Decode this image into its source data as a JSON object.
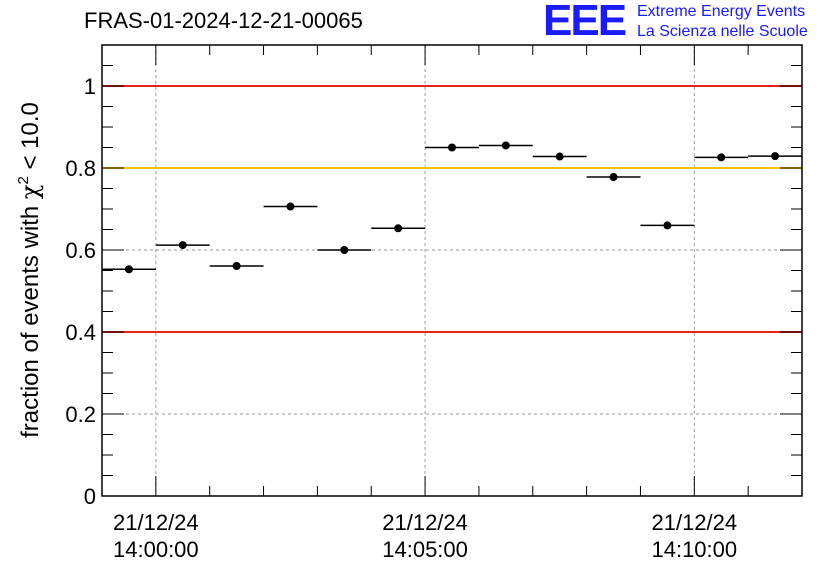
{
  "title": "FRAS-01-2024-12-21-00065",
  "logo": {
    "mark": "EEE",
    "line1": "Extreme Energy Events",
    "line2": "La Scienza nelle Scuole",
    "color": "#1a1aff"
  },
  "chart_data": {
    "type": "scatter",
    "ylabel": "fraction of events with χ² < 10.0",
    "ylabel_prefix": "fraction of events with ",
    "ylabel_symbol": "χ",
    "ylabel_sup": "2",
    "ylabel_suffix": " < 10.0",
    "ylim": [
      0,
      1.1
    ],
    "y_ticks": [
      0,
      0.2,
      0.4,
      0.6,
      0.8,
      1
    ],
    "y_tick_labels": [
      "0",
      "0.2",
      "0.4",
      "0.6",
      "0.8",
      "1"
    ],
    "x_unit": "minutes after 21/12/24 13:59:00",
    "xlim": [
      0,
      13
    ],
    "x_ticks": [
      1,
      6,
      11
    ],
    "x_tick_labels": [
      [
        "21/12/24",
        "14:00:00"
      ],
      [
        "21/12/24",
        "14:05:00"
      ],
      [
        "21/12/24",
        "14:10:00"
      ]
    ],
    "grid": true,
    "reference_lines": [
      {
        "y": 1.0,
        "color": "#e8201e"
      },
      {
        "y": 0.8,
        "color": "#ffc000"
      },
      {
        "y": 0.4,
        "color": "#e8201e"
      }
    ],
    "series": [
      {
        "x": [
          0.5,
          1.5,
          2.5,
          3.5,
          4.5,
          5.5,
          6.5,
          7.5,
          8.5,
          9.5,
          10.5,
          11.5,
          12.5
        ],
        "x_halfwidth": 0.5,
        "values": [
          0.553,
          0.612,
          0.561,
          0.706,
          0.6,
          0.653,
          0.85,
          0.855,
          0.828,
          0.778,
          0.66,
          0.826,
          0.829
        ]
      }
    ]
  }
}
